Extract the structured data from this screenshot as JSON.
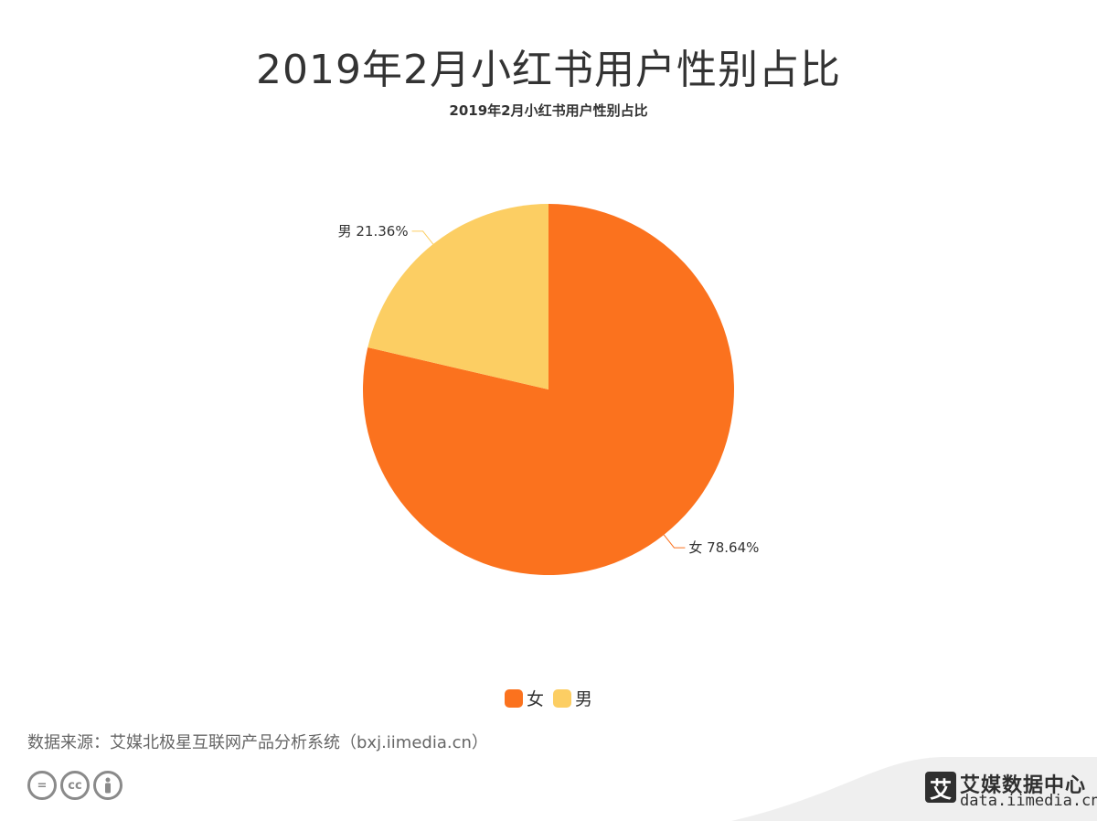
{
  "header": {
    "title": "2019年2月小红书用户性别占比",
    "subtitle": "2019年2月小红书用户性别占比"
  },
  "chart_data": {
    "type": "pie",
    "title": "2019年2月小红书用户性别占比",
    "categories": [
      "女",
      "男"
    ],
    "values": [
      78.64,
      21.36
    ],
    "unit": "%",
    "labels": [
      "女 78.64%",
      "男 21.36%"
    ],
    "colors": [
      "#fb721e",
      "#fcce63"
    ],
    "legend_position": "bottom-center"
  },
  "legend": {
    "items": [
      {
        "label": "女",
        "color": "#fb721e"
      },
      {
        "label": "男",
        "color": "#fcce63"
      }
    ]
  },
  "footer": {
    "source": "数据来源：艾媒北极星互联网产品分析系统（bxj.iimedia.cn）",
    "license_icons": [
      "equals-icon",
      "cc-icon",
      "person-icon"
    ],
    "license_text": [
      "=",
      "cc"
    ],
    "brand_logo_char": "艾",
    "brand_name": "艾媒数据中心",
    "brand_url": "data.iimedia.cn"
  }
}
